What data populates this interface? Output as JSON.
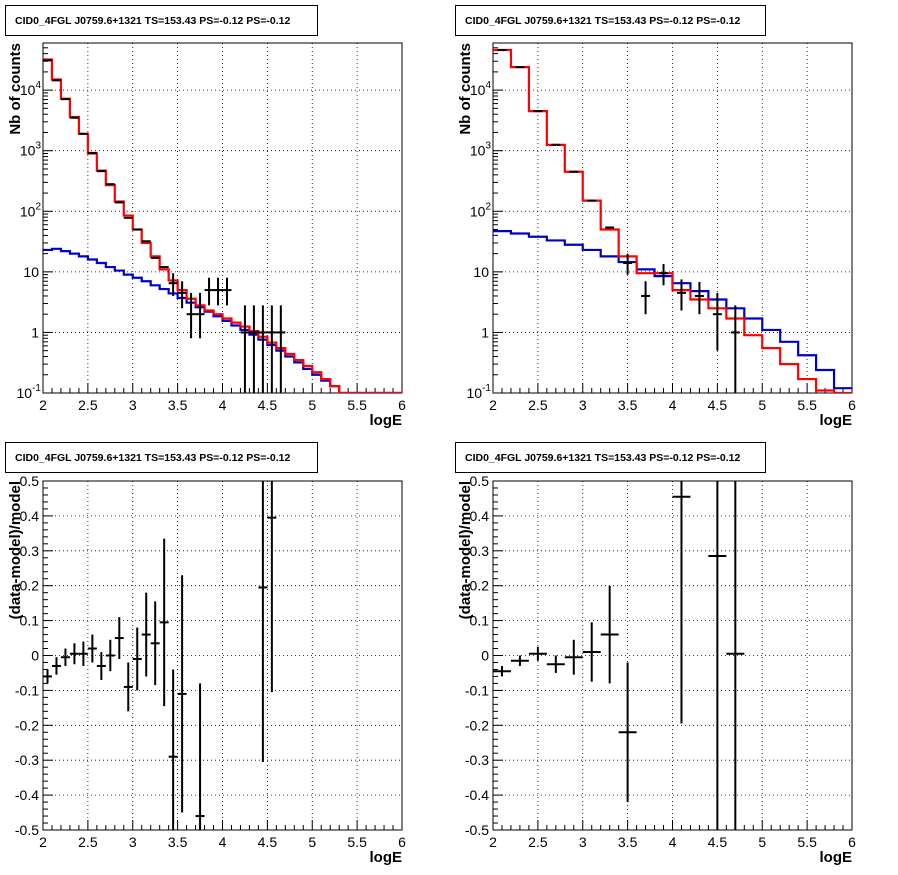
{
  "page": {
    "background": "#ffffff"
  },
  "colors": {
    "data": "#000000",
    "model_total": "#ff0000",
    "model_component": "#0000cc",
    "grid": "#000000"
  },
  "chart_data": [
    {
      "id": "counts-left",
      "type": "line",
      "title": "CID0_4FGL J0759.6+1321 TS=153.43 PS=-0.12 PS=-0.12",
      "xlabel": "logE",
      "ylabel": "Nb of counts",
      "xlim": [
        2,
        6
      ],
      "ylim": [
        0.1,
        60000
      ],
      "log_y": true,
      "grid": true,
      "x_ticks": [
        "2",
        "2.5",
        "3",
        "3.5",
        "4",
        "4.5",
        "5",
        "5.5",
        "6"
      ],
      "y_ticks": [
        "10^-1",
        "1",
        "10",
        "10^2",
        "10^3",
        "10^4"
      ],
      "bin_edges": [
        2.0,
        2.1,
        2.2,
        2.3,
        2.4,
        2.5,
        2.6,
        2.7,
        2.8,
        2.9,
        3.0,
        3.1,
        3.2,
        3.3,
        3.4,
        3.5,
        3.6,
        3.7,
        3.8,
        3.9,
        4.0,
        4.1,
        4.2,
        4.3,
        4.4,
        4.5,
        4.6,
        4.7,
        4.8,
        4.9,
        5.0,
        5.1,
        5.2,
        5.3,
        5.4,
        5.5,
        5.6,
        5.7,
        5.8,
        5.9,
        6.0
      ],
      "series": [
        {
          "role": "total",
          "values": [
            32000,
            15000,
            7200,
            3600,
            1900,
            900,
            470,
            270,
            145,
            85,
            50,
            30,
            18,
            11,
            7.2,
            5.0,
            3.6,
            2.8,
            2.3,
            2.0,
            1.7,
            1.45,
            1.25,
            1.05,
            0.85,
            0.68,
            0.55,
            0.44,
            0.35,
            0.28,
            0.22,
            0.17,
            0.13,
            0.1,
            0.1,
            0.1,
            0.1,
            0.1,
            0.1,
            0.1
          ]
        },
        {
          "role": "component",
          "values": [
            23,
            24,
            22,
            20,
            18,
            16,
            14,
            12,
            10.5,
            9.0,
            8.0,
            7.0,
            6.0,
            5.2,
            4.4,
            3.7,
            3.1,
            2.6,
            2.2,
            1.85,
            1.55,
            1.3,
            1.1,
            0.92,
            0.76,
            0.62,
            0.5,
            0.4,
            0.32,
            0.25,
            0.2,
            0.16,
            0.13,
            0.1,
            0.1,
            0.1,
            0.1,
            0.1,
            0.1,
            0.1
          ]
        }
      ],
      "data_points": {
        "x": [
          2.05,
          2.15,
          2.25,
          2.35,
          2.45,
          2.55,
          2.65,
          2.75,
          2.85,
          2.95,
          3.05,
          3.15,
          3.25,
          3.35,
          3.45,
          3.55,
          3.65,
          3.75,
          3.85,
          3.95,
          4.05,
          4.25,
          4.35,
          4.45,
          4.55,
          4.65
        ],
        "y": [
          31000,
          14500,
          7100,
          3500,
          1900,
          920,
          460,
          280,
          140,
          78,
          50,
          32,
          17,
          12,
          6.5,
          4.5,
          2.0,
          2.0,
          5.0,
          5.0,
          5.0,
          1.0,
          1.0,
          1.0,
          1.0,
          1.0
        ],
        "y_err_low": [
          0,
          0,
          0,
          0,
          0,
          0,
          0,
          0,
          0,
          0,
          0,
          0,
          0,
          0,
          2.5,
          2.0,
          1.2,
          1.2,
          2.2,
          2.2,
          2.2,
          0.9,
          0.9,
          0.9,
          0.9,
          0.9
        ],
        "y_err_high": [
          0,
          0,
          0,
          0,
          0,
          0,
          0,
          0,
          0,
          0,
          0,
          0,
          0,
          0,
          3.0,
          2.5,
          2.5,
          2.5,
          3.0,
          3.0,
          3.0,
          1.8,
          1.8,
          1.8,
          1.8,
          1.8
        ]
      }
    },
    {
      "id": "counts-right",
      "type": "line",
      "title": "CID0_4FGL J0759.6+1321 TS=153.43 PS=-0.12 PS=-0.12",
      "xlabel": "logE",
      "ylabel": "Nb of counts",
      "xlim": [
        2,
        6
      ],
      "ylim": [
        0.1,
        60000
      ],
      "log_y": true,
      "grid": true,
      "x_ticks": [
        "2",
        "2.5",
        "3",
        "3.5",
        "4",
        "4.5",
        "5",
        "5.5",
        "6"
      ],
      "y_ticks": [
        "10^-1",
        "1",
        "10",
        "10^2",
        "10^3",
        "10^4"
      ],
      "bin_edges": [
        2.0,
        2.2,
        2.4,
        2.6,
        2.8,
        3.0,
        3.2,
        3.4,
        3.6,
        3.8,
        4.0,
        4.2,
        4.4,
        4.6,
        4.8,
        5.0,
        5.2,
        5.4,
        5.6,
        5.8,
        6.0
      ],
      "series": [
        {
          "role": "total",
          "values": [
            46000,
            24000,
            4500,
            1250,
            450,
            150,
            50,
            18,
            9.5,
            9.5,
            5.0,
            3.5,
            2.5,
            1.7,
            0.9,
            0.55,
            0.3,
            0.17,
            0.11,
            0.1
          ]
        },
        {
          "role": "component",
          "values": [
            47,
            43,
            38,
            33,
            28,
            23,
            18,
            14.5,
            11,
            8.5,
            6.5,
            4.8,
            3.5,
            2.5,
            1.7,
            1.1,
            0.7,
            0.42,
            0.24,
            0.12
          ]
        }
      ],
      "data_points": {
        "x": [
          2.1,
          2.3,
          2.5,
          2.7,
          2.9,
          3.1,
          3.3,
          3.5,
          3.7,
          3.9,
          4.1,
          4.3,
          4.5,
          4.7
        ],
        "y": [
          46000,
          24000,
          4500,
          1250,
          450,
          150,
          54,
          14,
          4.0,
          9.5,
          4.5,
          4.0,
          2.0,
          1.0
        ],
        "y_err_low": [
          0,
          0,
          0,
          0,
          0,
          0,
          0,
          5,
          2.0,
          3.5,
          2.2,
          2.0,
          1.5,
          0.9
        ],
        "y_err_high": [
          0,
          0,
          0,
          0,
          0,
          0,
          0,
          6,
          3.0,
          4.0,
          3.0,
          2.8,
          2.5,
          1.8
        ]
      }
    },
    {
      "id": "residual-left",
      "type": "scatter",
      "title": "CID0_4FGL J0759.6+1321 TS=153.43 PS=-0.12 PS=-0.12",
      "xlabel": "logE",
      "ylabel": "(data-model)/model",
      "xlim": [
        2,
        6
      ],
      "ylim": [
        -0.5,
        0.5
      ],
      "grid": true,
      "x_ticks": [
        "2",
        "2.5",
        "3",
        "3.5",
        "4",
        "4.5",
        "5",
        "5.5",
        "6"
      ],
      "y_ticks": [
        "-0.5",
        "-0.4",
        "-0.3",
        "-0.2",
        "-0.1",
        "0",
        "0.1",
        "0.2",
        "0.3",
        "0.4",
        "0.5"
      ],
      "data_points": {
        "x": [
          2.05,
          2.15,
          2.25,
          2.35,
          2.45,
          2.55,
          2.65,
          2.75,
          2.85,
          2.95,
          3.05,
          3.15,
          3.25,
          3.35,
          3.45,
          3.55,
          3.75,
          4.45,
          4.55
        ],
        "y": [
          -0.06,
          -0.03,
          -0.005,
          0.005,
          0.005,
          0.02,
          -0.03,
          0.0,
          0.05,
          -0.09,
          -0.01,
          0.06,
          0.035,
          0.095,
          -0.29,
          -0.11,
          -0.46,
          0.195,
          0.395
        ],
        "y_err": [
          0.02,
          0.025,
          0.025,
          0.03,
          0.035,
          0.04,
          0.04,
          0.045,
          0.06,
          0.07,
          0.09,
          0.12,
          0.12,
          0.24,
          0.25,
          0.34,
          0.38,
          0.5,
          0.5
        ],
        "x_halfwidth": 0.05
      }
    },
    {
      "id": "residual-right",
      "type": "scatter",
      "title": "CID0_4FGL J0759.6+1321 TS=153.43 PS=-0.12 PS=-0.12",
      "xlabel": "logE",
      "ylabel": "(data-model)/model",
      "xlim": [
        2,
        6
      ],
      "ylim": [
        -0.5,
        0.5
      ],
      "grid": true,
      "x_ticks": [
        "2",
        "2.5",
        "3",
        "3.5",
        "4",
        "4.5",
        "5",
        "5.5",
        "6"
      ],
      "y_ticks": [
        "-0.5",
        "-0.4",
        "-0.3",
        "-0.2",
        "-0.1",
        "0",
        "0.1",
        "0.2",
        "0.3",
        "0.4",
        "0.5"
      ],
      "data_points": {
        "x": [
          2.1,
          2.3,
          2.5,
          2.7,
          2.9,
          3.1,
          3.3,
          3.5,
          4.1,
          4.5,
          4.7
        ],
        "y": [
          -0.045,
          -0.015,
          0.005,
          -0.025,
          -0.005,
          0.01,
          0.06,
          -0.22,
          0.455,
          0.285,
          0.005
        ],
        "y_err": [
          0.015,
          0.015,
          0.02,
          0.025,
          0.05,
          0.085,
          0.14,
          0.2,
          0.65,
          0.9,
          1.0
        ],
        "x_halfwidth": 0.1
      }
    }
  ]
}
